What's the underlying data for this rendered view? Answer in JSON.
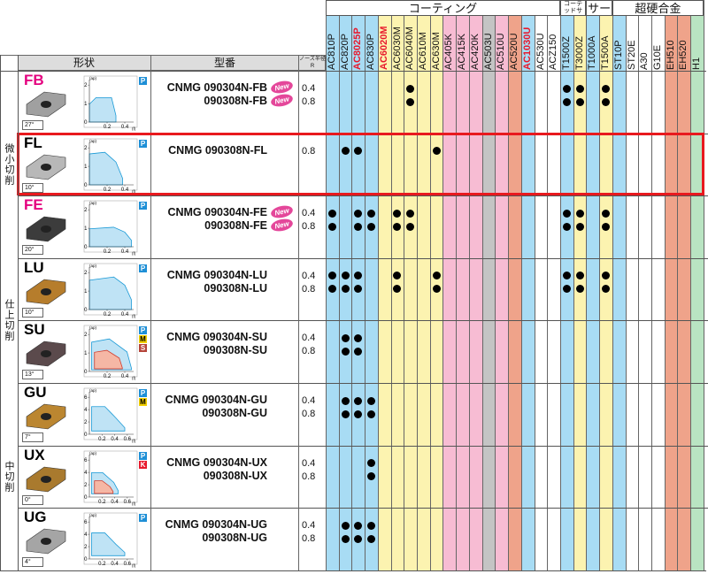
{
  "header": {
    "shape": "形状",
    "model": "型番",
    "nose": "ノーズ半径 R"
  },
  "grade_groups": [
    {
      "label": "コーティング",
      "grades": [
        {
          "name": "AC810P",
          "bg": "#a8dcf4"
        },
        {
          "name": "AC820P",
          "bg": "#a8dcf4"
        },
        {
          "name": "AC8025P",
          "bg": "#a8dcf4",
          "text_color": "#e8192c"
        },
        {
          "name": "AC830P",
          "bg": "#a8dcf4"
        },
        {
          "name": "AC6020M",
          "bg": "#fcf3b0",
          "text_color": "#e8192c"
        },
        {
          "name": "AC6030M",
          "bg": "#fcf3b0"
        },
        {
          "name": "AC6040M",
          "bg": "#fcf3b0"
        },
        {
          "name": "AC610M",
          "bg": "#fcf3b0"
        },
        {
          "name": "AC630M",
          "bg": "#fcf3b0"
        },
        {
          "name": "AC405K",
          "bg": "#f7bcd3"
        },
        {
          "name": "AC415K",
          "bg": "#f7bcd3"
        },
        {
          "name": "AC420K",
          "bg": "#f7bcd3"
        },
        {
          "name": "AC503U",
          "bg": "#c4c4c4"
        },
        {
          "name": "AC510U",
          "bg": "#f7bcd3"
        },
        {
          "name": "AC520U",
          "bg": "#efa38a"
        },
        {
          "name": "AC1030U",
          "bg": "#a8dcf4",
          "text_color": "#e8192c"
        },
        {
          "name": "AC530U",
          "bg": "#ffffff"
        },
        {
          "name": "ACZ150",
          "bg": "#ffffff"
        }
      ]
    },
    {
      "label": "コーテッドサーメット",
      "grades": [
        {
          "name": "T1500Z",
          "bg": "#a8dcf4"
        },
        {
          "name": "T3000Z",
          "bg": "#fcf3b0"
        }
      ]
    },
    {
      "label": "サーメット",
      "grades": [
        {
          "name": "T1000A",
          "bg": "#a8dcf4"
        },
        {
          "name": "T1500A",
          "bg": "#fcf3b0"
        }
      ]
    },
    {
      "label": "超硬合金",
      "grades": [
        {
          "name": "ST10P",
          "bg": "#a8dcf4"
        },
        {
          "name": "ST20E",
          "bg": "#ffffff"
        },
        {
          "name": "A30",
          "bg": "#ffffff"
        },
        {
          "name": "G10E",
          "bg": "#ffffff"
        },
        {
          "name": "EH510",
          "bg": "#efa38a"
        },
        {
          "name": "EH520",
          "bg": "#efa38a"
        },
        {
          "name": "H1",
          "bg": "#b9e4c2"
        }
      ]
    }
  ],
  "sections": [
    {
      "label": "微小切削",
      "rows": [
        {
          "name": "FB",
          "name_color": "#e4007f",
          "rake": "27°",
          "materials": [
            {
              "label": "P",
              "color": "#1e8fd6"
            }
          ],
          "graph": {
            "y_label": "(ap)",
            "x_label": "(f)",
            "yticks": [
              0,
              1,
              2
            ],
            "xticks": [
              0.2,
              0.4
            ],
            "ylim": [
              0,
              2.2
            ],
            "xlim": [
              0,
              0.5
            ]
          },
          "lines": [
            {
              "model": "CNMG 090304N-FB",
              "badge": "New",
              "nose": 0.4,
              "dots": [
                6,
                18,
                19,
                21
              ]
            },
            {
              "model": "090308N-FB",
              "badge": "New",
              "nose": 0.8,
              "dots": [
                6,
                18,
                19,
                21
              ]
            }
          ]
        },
        {
          "name": "FL",
          "name_color": "#000000",
          "rake": "10°",
          "materials": [
            {
              "label": "P",
              "color": "#1e8fd6"
            }
          ],
          "graph": {
            "y_label": "(ap)",
            "x_label": "(f)",
            "yticks": [
              0,
              1,
              2
            ],
            "xticks": [
              0.2,
              0.4
            ],
            "ylim": [
              0,
              2.2
            ],
            "xlim": [
              0,
              0.5
            ]
          },
          "lines": [
            {
              "model": "CNMG 090308N-FL",
              "nose": 0.8,
              "dots": [
                1,
                2,
                8
              ]
            }
          ]
        },
        {
          "name": "FE",
          "name_color": "#e4007f",
          "rake": "20°",
          "materials": [
            {
              "label": "P",
              "color": "#1e8fd6"
            }
          ],
          "graph": {
            "y_label": "(ap)",
            "x_label": "(f)",
            "yticks": [
              0,
              1,
              2
            ],
            "xticks": [
              0.2,
              0.4
            ],
            "ylim": [
              0,
              2.2
            ],
            "xlim": [
              0,
              0.5
            ]
          },
          "lines": [
            {
              "model": "CNMG 090304N-FE",
              "badge": "New",
              "nose": 0.4,
              "dots": [
                0,
                2,
                3,
                5,
                6,
                18,
                19,
                21
              ]
            },
            {
              "model": "090308N-FE",
              "badge": "New",
              "nose": 0.8,
              "dots": [
                0,
                2,
                3,
                5,
                6,
                18,
                19,
                21
              ]
            }
          ]
        }
      ]
    },
    {
      "label": "仕上切削",
      "rows": [
        {
          "name": "LU",
          "name_color": "#000000",
          "rake": "10°",
          "materials": [
            {
              "label": "P",
              "color": "#1e8fd6"
            }
          ],
          "graph": {
            "y_label": "(ap)",
            "x_label": "(f)",
            "yticks": [
              0,
              1,
              2
            ],
            "xticks": [
              0.2,
              0.4
            ],
            "ylim": [
              0,
              2.2
            ],
            "xlim": [
              0,
              0.5
            ]
          },
          "lines": [
            {
              "model": "CNMG 090304N-LU",
              "nose": 0.4,
              "dots": [
                0,
                1,
                2,
                5,
                8,
                18,
                19,
                21
              ]
            },
            {
              "model": "090308N-LU",
              "nose": 0.8,
              "dots": [
                0,
                1,
                2,
                5,
                8,
                18,
                19,
                21
              ]
            }
          ]
        },
        {
          "name": "SU",
          "name_color": "#000000",
          "rake": "13°",
          "materials": [
            {
              "label": "P",
              "color": "#1e8fd6"
            },
            {
              "label": "M",
              "color": "#f2cf00"
            },
            {
              "label": "S",
              "color": "#b5443a"
            }
          ],
          "graph": {
            "y_label": "(ap)",
            "x_label": "(f)",
            "yticks": [
              0,
              1,
              2
            ],
            "xticks": [
              0.2,
              0.4
            ],
            "ylim": [
              0,
              2.2
            ],
            "xlim": [
              0,
              0.5
            ]
          },
          "lines": [
            {
              "model": "CNMG 090304N-SU",
              "nose": 0.4,
              "dots": [
                1,
                2
              ]
            },
            {
              "model": "090308N-SU",
              "nose": 0.8,
              "dots": [
                1,
                2
              ]
            }
          ]
        }
      ]
    },
    {
      "label": "中切削",
      "rows": [
        {
          "name": "GU",
          "name_color": "#000000",
          "rake": "7°",
          "materials": [
            {
              "label": "P",
              "color": "#1e8fd6"
            },
            {
              "label": "M",
              "color": "#f2cf00"
            }
          ],
          "graph": {
            "y_label": "(ap)",
            "x_label": "(f)",
            "yticks": [
              0,
              2,
              4,
              6
            ],
            "xticks": [
              0.2,
              0.4,
              0.6
            ],
            "ylim": [
              0,
              6.6
            ],
            "xlim": [
              0,
              0.7
            ]
          },
          "lines": [
            {
              "model": "CNMG 090304N-GU",
              "nose": 0.4,
              "dots": [
                1,
                2,
                3
              ]
            },
            {
              "model": "090308N-GU",
              "nose": 0.8,
              "dots": [
                1,
                2,
                3
              ]
            }
          ]
        },
        {
          "name": "UX",
          "name_color": "#000000",
          "rake": "0°",
          "materials": [
            {
              "label": "P",
              "color": "#1e8fd6"
            },
            {
              "label": "K",
              "color": "#e8192c"
            }
          ],
          "graph": {
            "y_label": "(ap)",
            "x_label": "(f)",
            "yticks": [
              0,
              2,
              4,
              6
            ],
            "xticks": [
              0.2,
              0.4,
              0.6
            ],
            "ylim": [
              0,
              6.6
            ],
            "xlim": [
              0,
              0.7
            ]
          },
          "lines": [
            {
              "model": "CNMG 090304N-UX",
              "nose": 0.4,
              "dots": [
                3
              ]
            },
            {
              "model": "090308N-UX",
              "nose": 0.8,
              "dots": [
                3
              ]
            }
          ]
        },
        {
          "name": "UG",
          "name_color": "#000000",
          "rake": "4°",
          "materials": [
            {
              "label": "P",
              "color": "#1e8fd6"
            }
          ],
          "graph": {
            "y_label": "(ap)",
            "x_label": "(f)",
            "yticks": [
              0,
              2,
              4,
              6
            ],
            "xticks": [
              0.2,
              0.4,
              0.6
            ],
            "ylim": [
              0,
              6.6
            ],
            "xlim": [
              0,
              0.7
            ]
          },
          "lines": [
            {
              "model": "CNMG 090304N-UG",
              "nose": 0.4,
              "dots": [
                1,
                2,
                3
              ]
            },
            {
              "model": "090308N-UG",
              "nose": 0.8,
              "dots": [
                1,
                2,
                3
              ]
            }
          ]
        }
      ]
    }
  ]
}
